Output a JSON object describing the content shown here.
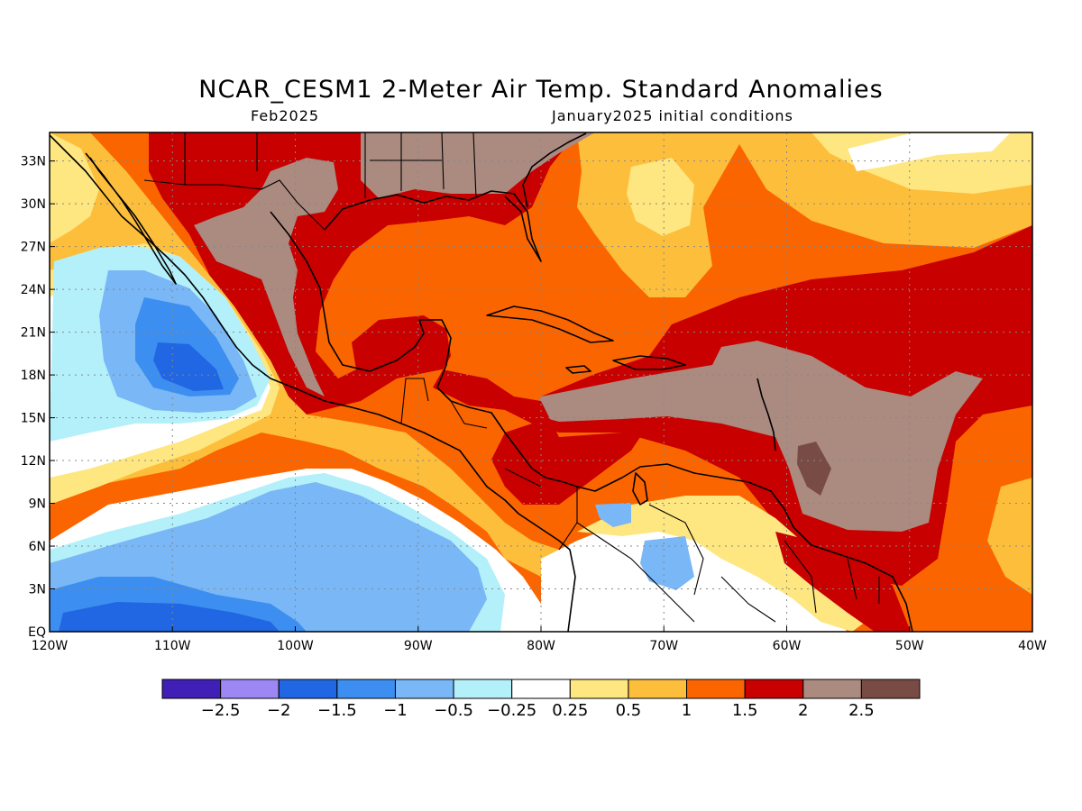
{
  "title": "NCAR_CESM1 2-Meter Air Temp. Standard Anomalies",
  "subtitle_left": "Feb2025",
  "subtitle_right": "January2025 initial conditions",
  "map": {
    "lon_range": [
      -120,
      -40
    ],
    "lat_range": [
      0,
      35
    ],
    "lon_ticks": [
      "120W",
      "110W",
      "100W",
      "90W",
      "80W",
      "70W",
      "60W",
      "50W",
      "40W"
    ],
    "lat_ticks": [
      "EQ",
      "3N",
      "6N",
      "9N",
      "12N",
      "15N",
      "18N",
      "21N",
      "24N",
      "27N",
      "30N",
      "33N"
    ],
    "grid": "dotted",
    "ocean_background_anomaly": "1 to 1.5"
  },
  "colorbar": {
    "colors": [
      "#3f1fb6",
      "#9d87f5",
      "#2166e2",
      "#3c8ef0",
      "#79b7f6",
      "#b4f0fa",
      "#ffffff",
      "#fee680",
      "#fdbe3c",
      "#fb6500",
      "#c80000",
      "#ab8a80",
      "#784c45"
    ],
    "labels": [
      "-2.5",
      "-2",
      "-1.5",
      "-1",
      "-0.5",
      "-0.25",
      "0.25",
      "0.5",
      "1",
      "1.5",
      "2",
      "2.5"
    ]
  }
}
